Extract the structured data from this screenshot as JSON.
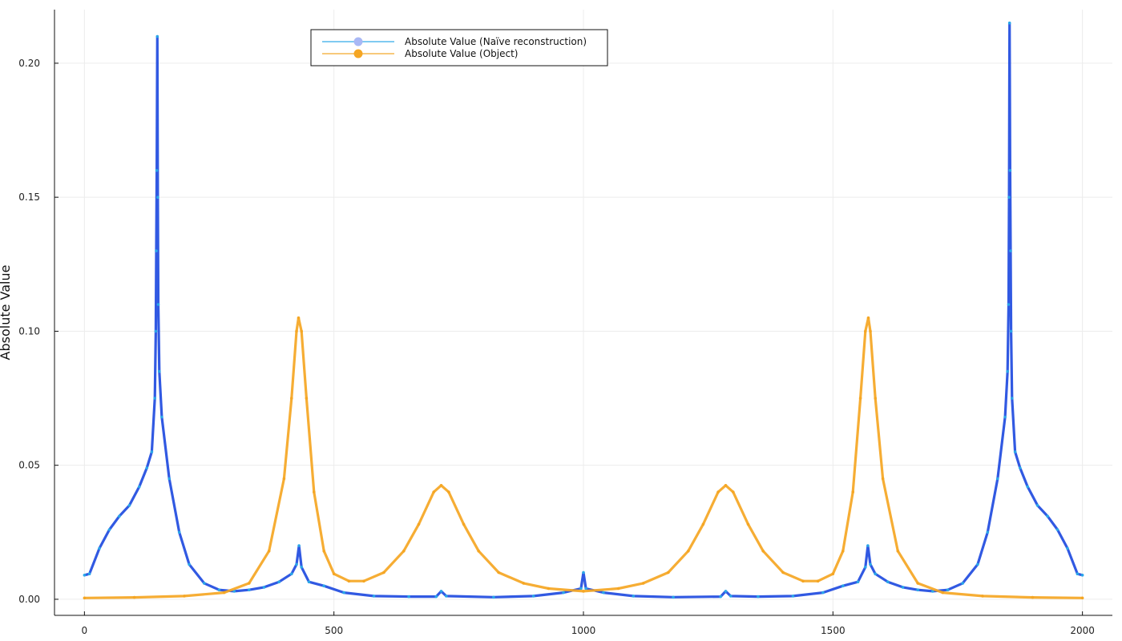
{
  "chart_data": {
    "type": "line",
    "title": "",
    "xlabel": "",
    "ylabel": "Absolute Value",
    "xlim": [
      -60,
      2060
    ],
    "ylim": [
      -0.006,
      0.22
    ],
    "xticks": [
      0,
      500,
      1000,
      1500,
      2000
    ],
    "xtick_labels": [
      "0",
      "500",
      "1000",
      "1500",
      "2000"
    ],
    "yticks": [
      0.0,
      0.05,
      0.1,
      0.15,
      0.2
    ],
    "ytick_labels": [
      "0.00",
      "0.05",
      "0.10",
      "0.15",
      "0.20"
    ],
    "grid": true,
    "legend_position": "top-left",
    "series": [
      {
        "name": "Absolute Value (Naïve reconstruction)",
        "color": "#1f4be0",
        "accent": "#2aa7e8",
        "points": [
          [
            0,
            0.009
          ],
          [
            10,
            0.0095
          ],
          [
            30,
            0.019
          ],
          [
            50,
            0.026
          ],
          [
            70,
            0.031
          ],
          [
            90,
            0.035
          ],
          [
            110,
            0.042
          ],
          [
            125,
            0.049
          ],
          [
            135,
            0.055
          ],
          [
            141,
            0.075
          ],
          [
            143,
            0.1
          ],
          [
            144,
            0.13
          ],
          [
            145,
            0.16
          ],
          [
            146,
            0.21
          ],
          [
            147,
            0.15
          ],
          [
            148,
            0.11
          ],
          [
            150,
            0.085
          ],
          [
            155,
            0.068
          ],
          [
            170,
            0.045
          ],
          [
            190,
            0.025
          ],
          [
            210,
            0.013
          ],
          [
            240,
            0.006
          ],
          [
            270,
            0.0035
          ],
          [
            300,
            0.003
          ],
          [
            330,
            0.0035
          ],
          [
            360,
            0.0045
          ],
          [
            390,
            0.0065
          ],
          [
            415,
            0.0095
          ],
          [
            425,
            0.013
          ],
          [
            430,
            0.02
          ],
          [
            435,
            0.012
          ],
          [
            450,
            0.0065
          ],
          [
            480,
            0.005
          ],
          [
            520,
            0.0025
          ],
          [
            580,
            0.0012
          ],
          [
            650,
            0.001
          ],
          [
            705,
            0.001
          ],
          [
            715,
            0.003
          ],
          [
            725,
            0.0012
          ],
          [
            820,
            0.0008
          ],
          [
            900,
            0.0012
          ],
          [
            960,
            0.0025
          ],
          [
            995,
            0.004
          ],
          [
            1000,
            0.01
          ],
          [
            1005,
            0.004
          ],
          [
            1040,
            0.0025
          ],
          [
            1100,
            0.0012
          ],
          [
            1180,
            0.0008
          ],
          [
            1275,
            0.001
          ],
          [
            1285,
            0.003
          ],
          [
            1295,
            0.0012
          ],
          [
            1350,
            0.001
          ],
          [
            1420,
            0.0012
          ],
          [
            1480,
            0.0025
          ],
          [
            1520,
            0.005
          ],
          [
            1550,
            0.0065
          ],
          [
            1565,
            0.012
          ],
          [
            1570,
            0.02
          ],
          [
            1575,
            0.013
          ],
          [
            1585,
            0.0095
          ],
          [
            1610,
            0.0065
          ],
          [
            1640,
            0.0045
          ],
          [
            1670,
            0.0035
          ],
          [
            1700,
            0.003
          ],
          [
            1730,
            0.0035
          ],
          [
            1760,
            0.006
          ],
          [
            1790,
            0.013
          ],
          [
            1810,
            0.025
          ],
          [
            1830,
            0.045
          ],
          [
            1845,
            0.068
          ],
          [
            1850,
            0.085
          ],
          [
            1852,
            0.11
          ],
          [
            1853,
            0.15
          ],
          [
            1854,
            0.215
          ],
          [
            1855,
            0.16
          ],
          [
            1856,
            0.13
          ],
          [
            1857,
            0.1
          ],
          [
            1859,
            0.075
          ],
          [
            1865,
            0.055
          ],
          [
            1875,
            0.049
          ],
          [
            1890,
            0.042
          ],
          [
            1910,
            0.035
          ],
          [
            1930,
            0.031
          ],
          [
            1950,
            0.026
          ],
          [
            1970,
            0.019
          ],
          [
            1990,
            0.0095
          ],
          [
            2000,
            0.009
          ]
        ]
      },
      {
        "name": "Absolute Value (Object)",
        "color": "#f5a623",
        "accent": "#f5a623",
        "points": [
          [
            0,
            0.0005
          ],
          [
            100,
            0.0007
          ],
          [
            200,
            0.0012
          ],
          [
            280,
            0.0025
          ],
          [
            330,
            0.006
          ],
          [
            370,
            0.018
          ],
          [
            400,
            0.045
          ],
          [
            415,
            0.075
          ],
          [
            425,
            0.1
          ],
          [
            429,
            0.105
          ],
          [
            435,
            0.1
          ],
          [
            445,
            0.075
          ],
          [
            460,
            0.04
          ],
          [
            480,
            0.018
          ],
          [
            500,
            0.0095
          ],
          [
            530,
            0.0068
          ],
          [
            560,
            0.0068
          ],
          [
            600,
            0.01
          ],
          [
            640,
            0.018
          ],
          [
            670,
            0.028
          ],
          [
            700,
            0.04
          ],
          [
            715,
            0.0425
          ],
          [
            730,
            0.04
          ],
          [
            760,
            0.028
          ],
          [
            790,
            0.018
          ],
          [
            830,
            0.01
          ],
          [
            880,
            0.006
          ],
          [
            930,
            0.004
          ],
          [
            1000,
            0.003
          ],
          [
            1070,
            0.004
          ],
          [
            1120,
            0.006
          ],
          [
            1170,
            0.01
          ],
          [
            1210,
            0.018
          ],
          [
            1240,
            0.028
          ],
          [
            1270,
            0.04
          ],
          [
            1285,
            0.0425
          ],
          [
            1300,
            0.04
          ],
          [
            1330,
            0.028
          ],
          [
            1360,
            0.018
          ],
          [
            1400,
            0.01
          ],
          [
            1440,
            0.0068
          ],
          [
            1470,
            0.0068
          ],
          [
            1500,
            0.0095
          ],
          [
            1520,
            0.018
          ],
          [
            1540,
            0.04
          ],
          [
            1555,
            0.075
          ],
          [
            1565,
            0.1
          ],
          [
            1571,
            0.105
          ],
          [
            1575,
            0.1
          ],
          [
            1585,
            0.075
          ],
          [
            1600,
            0.045
          ],
          [
            1630,
            0.018
          ],
          [
            1670,
            0.006
          ],
          [
            1720,
            0.0025
          ],
          [
            1800,
            0.0012
          ],
          [
            1900,
            0.0007
          ],
          [
            2000,
            0.0005
          ]
        ]
      }
    ]
  }
}
